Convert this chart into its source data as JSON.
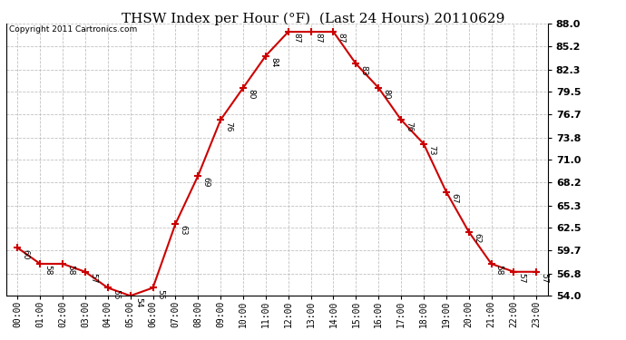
{
  "title": "THSW Index per Hour (°F)  (Last 24 Hours) 20110629",
  "copyright": "Copyright 2011 Cartronics.com",
  "hours": [
    "00:00",
    "01:00",
    "02:00",
    "03:00",
    "04:00",
    "05:00",
    "06:00",
    "07:00",
    "08:00",
    "09:00",
    "10:00",
    "11:00",
    "12:00",
    "13:00",
    "14:00",
    "15:00",
    "16:00",
    "17:00",
    "18:00",
    "19:00",
    "20:00",
    "21:00",
    "22:00",
    "23:00"
  ],
  "values": [
    60,
    58,
    58,
    57,
    55,
    54,
    55,
    63,
    69,
    76,
    80,
    84,
    87,
    87,
    87,
    83,
    80,
    76,
    73,
    67,
    62,
    58,
    57,
    57
  ],
  "ylim": [
    54.0,
    88.0
  ],
  "yticks": [
    54.0,
    56.8,
    59.7,
    62.5,
    65.3,
    68.2,
    71.0,
    73.8,
    76.7,
    79.5,
    82.3,
    85.2,
    88.0
  ],
  "line_color": "#cc0000",
  "marker_color": "#cc0000",
  "bg_color": "#ffffff",
  "plot_bg_color": "#ffffff",
  "grid_color": "#bbbbbb",
  "title_fontsize": 11,
  "label_fontsize": 7,
  "annotation_fontsize": 6.5,
  "copyright_fontsize": 6.5
}
